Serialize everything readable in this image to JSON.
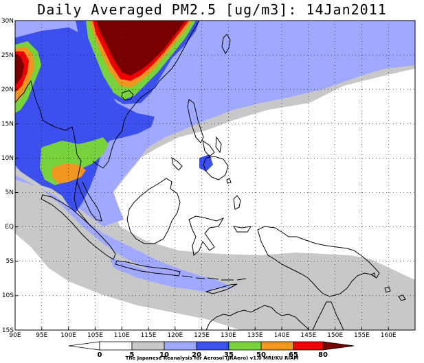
{
  "title": "Daily Averaged PM2.5 [ug/m3]: 14Jan2011",
  "credit": "The Japanese Reanalysis for Aerosol (JRAero) v1.0 MRI/KU RIAM",
  "axes": {
    "lon_labels": [
      "90E",
      "95E",
      "100E",
      "105E",
      "110E",
      "115E",
      "120E",
      "125E",
      "130E",
      "135E",
      "140E",
      "145E",
      "150E",
      "155E",
      "160E"
    ],
    "lat_labels": [
      "30N",
      "25N",
      "20N",
      "15N",
      "10N",
      "5N",
      "EQ",
      "5S",
      "10S",
      "15S"
    ]
  },
  "colorbar": {
    "labels": [
      "0",
      "5",
      "10",
      "20",
      "35",
      "50",
      "65",
      "80"
    ],
    "colors": [
      "#ffffff",
      "#ffffff",
      "#c8c8c8",
      "#a0a8ff",
      "#3c50f0",
      "#78d23c",
      "#f0961e",
      "#f00000",
      "#780000"
    ]
  },
  "colors": {
    "level_5_10": "#c8c8c8",
    "level_10_20": "#a0a8ff",
    "level_20_35": "#3c50f0",
    "level_35_50": "#78d23c",
    "level_50_65": "#f0961e",
    "level_65_80": "#f00000",
    "level_80_plus": "#780000"
  }
}
